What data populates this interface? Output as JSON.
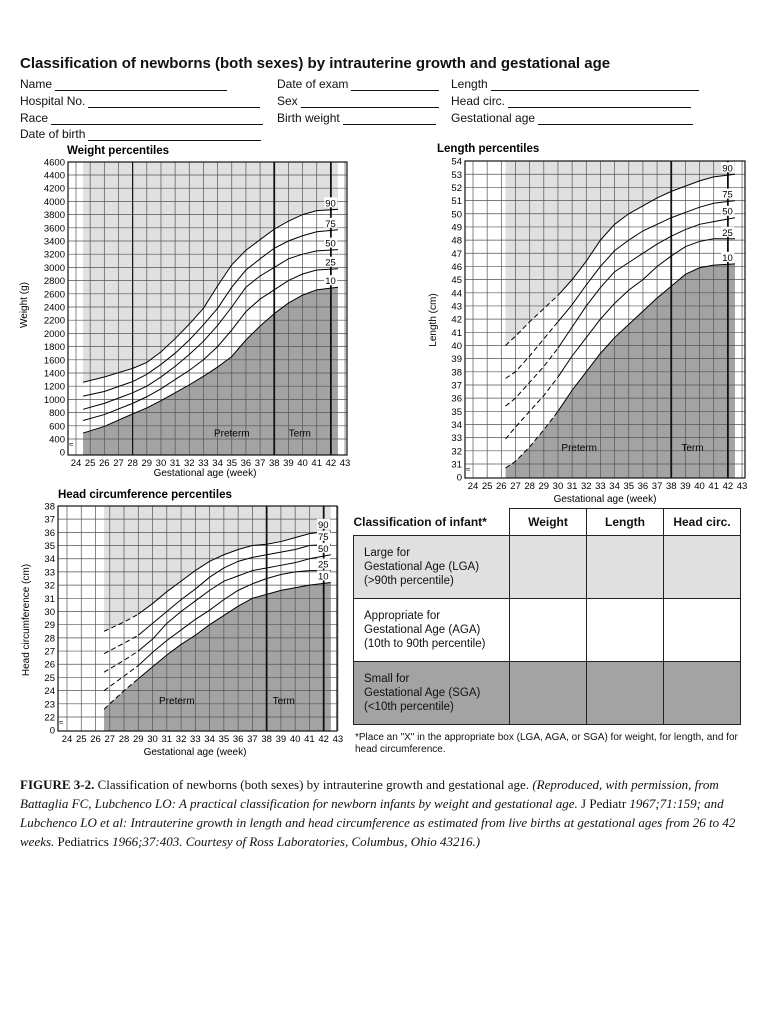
{
  "form": {
    "title": "Classification of  newborns (both sexes) by intrauterine growth and gestational age",
    "fields": [
      {
        "label": "Name",
        "value": ""
      },
      {
        "label": "Hospital No.",
        "value": ""
      },
      {
        "label": "Race",
        "value": ""
      },
      {
        "label": "Date of birth",
        "value": ""
      },
      {
        "label": "Date of exam",
        "value": ""
      },
      {
        "label": "Sex",
        "value": ""
      },
      {
        "label": "Birth weight",
        "value": ""
      },
      {
        "label": "Length",
        "value": ""
      },
      {
        "label": "Head circ.",
        "value": ""
      },
      {
        "label": "Gestational age",
        "value": ""
      }
    ]
  },
  "chart_data": [
    {
      "type": "line",
      "title": "Weight percentiles",
      "xlabel": "Gestational age (week)",
      "ylabel": "Weight (g)",
      "x_ticks": [
        24,
        25,
        26,
        27,
        28,
        29,
        30,
        31,
        32,
        33,
        34,
        35,
        36,
        37,
        38,
        39,
        40,
        41,
        42,
        43
      ],
      "y_ticks": [
        "0",
        "400",
        "600",
        "800",
        "1000",
        "1200",
        "1400",
        "1600",
        "1800",
        "2000",
        "2200",
        "2400",
        "2600",
        "2800",
        "3000",
        "3200",
        "3400",
        "3600",
        "3800",
        "4000",
        "4200",
        "4400",
        "4600"
      ],
      "ylim": [
        0,
        4600
      ],
      "axis_break": true,
      "grid": true,
      "shaded_range": [
        24.5,
        42.5
      ],
      "reference_lines": [
        28,
        38,
        42
      ],
      "region_labels": [
        "Preterm",
        "Term"
      ],
      "x": [
        24.5,
        26,
        28,
        29,
        30,
        31,
        32,
        33,
        34,
        35,
        36,
        37,
        38,
        39,
        40,
        41,
        42.5
      ],
      "series": [
        {
          "name": "90",
          "values": [
            1260,
            1340,
            1470,
            1560,
            1720,
            1920,
            2140,
            2380,
            2720,
            3040,
            3260,
            3420,
            3580,
            3700,
            3800,
            3860,
            3880
          ]
        },
        {
          "name": "75",
          "values": [
            1050,
            1120,
            1270,
            1380,
            1530,
            1700,
            1900,
            2130,
            2380,
            2700,
            2960,
            3130,
            3290,
            3400,
            3480,
            3540,
            3570
          ]
        },
        {
          "name": "50",
          "values": [
            850,
            940,
            1100,
            1200,
            1340,
            1500,
            1680,
            1880,
            2120,
            2400,
            2700,
            2870,
            3000,
            3130,
            3200,
            3250,
            3270
          ]
        },
        {
          "name": "25",
          "values": [
            680,
            770,
            940,
            1040,
            1160,
            1300,
            1440,
            1600,
            1800,
            2050,
            2330,
            2520,
            2660,
            2800,
            2900,
            2960,
            2980
          ]
        },
        {
          "name": "10",
          "values": [
            490,
            590,
            780,
            870,
            980,
            1100,
            1220,
            1350,
            1490,
            1650,
            1900,
            2110,
            2300,
            2460,
            2580,
            2660,
            2700
          ]
        }
      ]
    },
    {
      "type": "line",
      "title": "Length percentiles",
      "xlabel": "Gestational age (week)",
      "ylabel": "Length (cm)",
      "x_ticks": [
        24,
        25,
        26,
        27,
        28,
        29,
        30,
        31,
        32,
        33,
        34,
        35,
        36,
        37,
        38,
        39,
        40,
        41,
        42,
        43
      ],
      "y_ticks": [
        "0",
        "31",
        "32",
        "33",
        "34",
        "35",
        "36",
        "37",
        "38",
        "39",
        "40",
        "41",
        "42",
        "43",
        "44",
        "45",
        "46",
        "47",
        "48",
        "49",
        "50",
        "51",
        "52",
        "53",
        "54"
      ],
      "ylim": [
        0,
        54
      ],
      "axis_break": true,
      "grid": true,
      "shaded_range": [
        26.3,
        42.5
      ],
      "reference_lines": [
        38,
        42
      ],
      "dashed_until": 29.5,
      "region_labels": [
        "Preterm",
        "Term"
      ],
      "x": [
        26.3,
        27,
        28,
        29,
        30,
        31,
        32,
        33,
        34,
        35,
        36,
        37,
        38,
        39,
        40,
        41,
        42.5
      ],
      "series": [
        {
          "name": "90",
          "values": [
            40,
            40.7,
            41.8,
            42.8,
            43.8,
            45,
            46.4,
            48,
            49.2,
            50,
            50.6,
            51.2,
            51.7,
            52.1,
            52.5,
            52.8,
            53
          ]
        },
        {
          "name": "75",
          "values": [
            37.5,
            38,
            39.2,
            40.5,
            41.8,
            43.1,
            44.6,
            46,
            47.2,
            48,
            48.7,
            49.2,
            49.7,
            50.1,
            50.5,
            50.8,
            51
          ]
        },
        {
          "name": "50",
          "values": [
            35.4,
            36,
            37.2,
            38.4,
            39.8,
            41.4,
            43,
            44.4,
            45.6,
            46.3,
            47,
            47.7,
            48.3,
            48.8,
            49.2,
            49.4,
            49.7
          ]
        },
        {
          "name": "25",
          "values": [
            32.9,
            33.8,
            35,
            36.2,
            37.6,
            39.2,
            40.6,
            42,
            43.2,
            44.2,
            45,
            46,
            46.8,
            47.5,
            47.9,
            48.1,
            48.1
          ]
        },
        {
          "name": "10",
          "values": [
            30.7,
            31.2,
            32.3,
            33.6,
            35,
            36.6,
            38,
            39.4,
            40.6,
            41.6,
            42.6,
            43.6,
            44.5,
            45.4,
            45.9,
            46.1,
            46.2
          ]
        }
      ]
    },
    {
      "type": "line",
      "title": "Head circumference percentiles",
      "xlabel": "Gestational age (week)",
      "ylabel": "Head circumference (cm)",
      "x_ticks": [
        24,
        25,
        26,
        27,
        28,
        29,
        30,
        31,
        32,
        33,
        34,
        35,
        36,
        37,
        38,
        39,
        40,
        41,
        42,
        43
      ],
      "y_ticks": [
        "0",
        "22",
        "23",
        "24",
        "25",
        "26",
        "27",
        "28",
        "29",
        "30",
        "31",
        "32",
        "33",
        "34",
        "35",
        "36",
        "37",
        "38"
      ],
      "ylim": [
        0,
        38
      ],
      "axis_break": true,
      "grid": true,
      "shaded_range": [
        26.6,
        42.5
      ],
      "reference_lines": [
        38,
        42
      ],
      "dashed_until": 29,
      "region_labels": [
        "Preterm",
        "Term"
      ],
      "x": [
        26.6,
        28,
        29,
        30,
        31,
        32,
        33,
        34,
        35,
        36,
        37,
        38,
        39,
        40,
        41,
        42.5
      ],
      "series": [
        {
          "name": "90",
          "values": [
            28.5,
            29.2,
            29.8,
            30.6,
            31.5,
            32.3,
            33.1,
            33.8,
            34.3,
            34.7,
            35,
            35.1,
            35.3,
            35.6,
            35.9,
            36.1
          ]
        },
        {
          "name": "75",
          "values": [
            26.8,
            27.6,
            28.2,
            29.1,
            30,
            30.9,
            31.7,
            32.6,
            33.3,
            33.8,
            34.1,
            34.3,
            34.5,
            34.7,
            35,
            35.1
          ]
        },
        {
          "name": "50",
          "values": [
            25.4,
            26.3,
            27,
            27.9,
            29.1,
            30,
            30.8,
            31.6,
            32.3,
            32.7,
            33.1,
            33.3,
            33.5,
            33.7,
            34,
            34.3
          ]
        },
        {
          "name": "25",
          "values": [
            24,
            25.1,
            25.9,
            26.9,
            27.8,
            28.6,
            29.4,
            30.1,
            30.9,
            31.6,
            32.1,
            32.5,
            32.8,
            33,
            33.1,
            33.1
          ]
        },
        {
          "name": "10",
          "values": [
            22.6,
            24,
            24.9,
            25.8,
            26.7,
            27.5,
            28.2,
            29,
            29.7,
            30.4,
            31,
            31.3,
            31.6,
            31.8,
            32,
            32.2
          ]
        }
      ]
    }
  ],
  "colors": {
    "light_region": "#e0e0e0",
    "dark_region": "#a3a3a3",
    "grid": "#555555",
    "line": "#000000"
  },
  "table": {
    "header": [
      "Classification of infant*",
      "Weight",
      "Length",
      "Head circ."
    ],
    "rows": [
      {
        "lines": [
          "Large for",
          "Gestational Age (LGA)",
          "(>90th percentile)"
        ]
      },
      {
        "lines": [
          "Appropriate for",
          "Gestational Age (AGA)",
          "(10th to 90th percentile)"
        ]
      },
      {
        "lines": [
          "Small for",
          "Gestational Age (SGA)",
          "(<10th percentile)"
        ]
      }
    ],
    "note": "*Place an \"X\" in the appropriate box (LGA, AGA, or SGA) for weight, for length, and for head circumference."
  },
  "caption": {
    "label": "FIGURE 3-2.",
    "text": " Classification of newborns (both sexes) by intrauterine growth and gestational age. ",
    "italic1": "(Reproduced, with permission, from Battaglia FC, Lubchenco LO: A practical classification for newborn infants by weight and gestational age.",
    "plain1": " J Pediatr ",
    "italic2": "1967;71:159; and Lubchenco LO et al: Intrauterine growth in length and head circumference as estimated from live births at gestational ages from 26 to 42 weeks.",
    "plain2": " Pediatrics ",
    "italic3": "1966;37:403. Courtesy of Ross Laboratories, Columbus, Ohio 43216.)"
  }
}
